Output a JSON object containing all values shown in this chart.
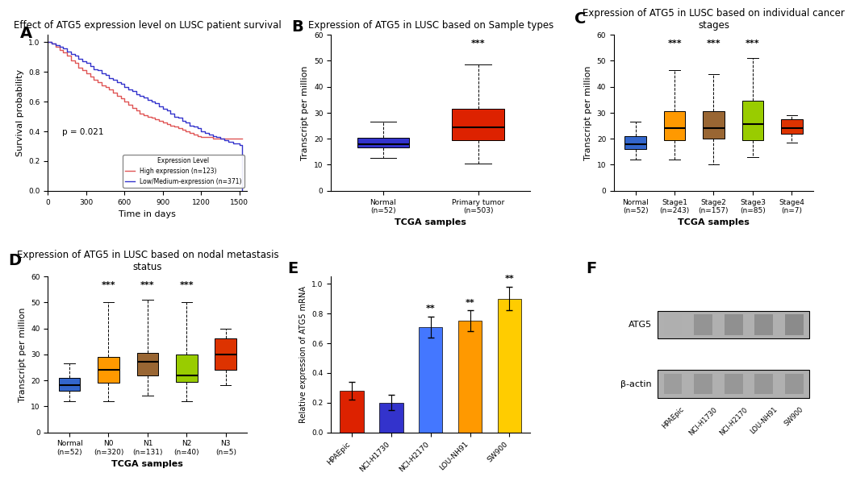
{
  "panel_A": {
    "title": "Effect of ATG5 expression level on LUSC patient survival",
    "xlabel": "Time in days",
    "ylabel": "Survival probability",
    "p_value": "p = 0.021",
    "legend_title": "Expression Level",
    "high_label": "High expression (n=123)",
    "low_label": "Low/Medium-expression (n=371)",
    "high_color": "#e05555",
    "low_color": "#3333cc",
    "high_x": [
      0,
      30,
      60,
      90,
      120,
      150,
      180,
      210,
      240,
      270,
      300,
      330,
      360,
      390,
      420,
      450,
      480,
      510,
      540,
      570,
      600,
      630,
      660,
      690,
      720,
      750,
      780,
      810,
      840,
      870,
      900,
      930,
      960,
      990,
      1020,
      1050,
      1080,
      1110,
      1140,
      1170,
      1200,
      1230,
      1260,
      1290,
      1320,
      1350,
      1380,
      1410,
      1450,
      1500,
      1520
    ],
    "high_y": [
      1.0,
      0.99,
      0.97,
      0.95,
      0.93,
      0.91,
      0.88,
      0.86,
      0.83,
      0.81,
      0.79,
      0.77,
      0.75,
      0.73,
      0.71,
      0.7,
      0.68,
      0.66,
      0.64,
      0.62,
      0.6,
      0.58,
      0.56,
      0.54,
      0.52,
      0.51,
      0.5,
      0.49,
      0.48,
      0.47,
      0.46,
      0.45,
      0.44,
      0.43,
      0.42,
      0.41,
      0.4,
      0.39,
      0.38,
      0.37,
      0.36,
      0.36,
      0.36,
      0.35,
      0.35,
      0.35,
      0.35,
      0.35,
      0.35,
      0.35,
      0.35
    ],
    "low_x": [
      0,
      30,
      60,
      90,
      120,
      150,
      180,
      210,
      240,
      270,
      300,
      330,
      360,
      390,
      420,
      450,
      480,
      510,
      540,
      570,
      600,
      630,
      660,
      690,
      720,
      750,
      780,
      810,
      840,
      870,
      900,
      930,
      960,
      990,
      1020,
      1050,
      1080,
      1110,
      1140,
      1170,
      1200,
      1230,
      1260,
      1290,
      1320,
      1350,
      1380,
      1410,
      1450,
      1500,
      1520
    ],
    "low_y": [
      1.0,
      0.99,
      0.98,
      0.97,
      0.96,
      0.94,
      0.92,
      0.91,
      0.89,
      0.87,
      0.86,
      0.84,
      0.82,
      0.81,
      0.79,
      0.78,
      0.76,
      0.75,
      0.73,
      0.72,
      0.7,
      0.68,
      0.67,
      0.65,
      0.64,
      0.63,
      0.61,
      0.6,
      0.59,
      0.57,
      0.55,
      0.54,
      0.52,
      0.5,
      0.49,
      0.47,
      0.46,
      0.44,
      0.43,
      0.42,
      0.4,
      0.39,
      0.38,
      0.37,
      0.36,
      0.35,
      0.34,
      0.33,
      0.32,
      0.31,
      0.0
    ]
  },
  "panel_B": {
    "title": "Expression of ATG5 in LUSC based on Sample types",
    "xlabel": "TCGA samples",
    "ylabel": "Transcript per million",
    "categories": [
      "Normal\n(n=52)",
      "Primary tumor\n(n=503)"
    ],
    "colors": [
      "#3333cc",
      "#dd2200"
    ],
    "significance": [
      "",
      "***"
    ],
    "boxes": [
      {
        "med": 18.0,
        "q1": 16.5,
        "q3": 20.5,
        "whislo": 12.5,
        "whishi": 26.5
      },
      {
        "med": 24.5,
        "q1": 19.5,
        "q3": 31.5,
        "whislo": 10.5,
        "whishi": 48.5
      }
    ],
    "ylim": [
      0,
      60
    ],
    "yticks": [
      0,
      10,
      20,
      30,
      40,
      50,
      60
    ]
  },
  "panel_C": {
    "title": "Expression of ATG5 in LUSC based on individual cancer\nstages",
    "xlabel": "TCGA samples",
    "ylabel": "Transcript per million",
    "categories": [
      "Normal\n(n=52)",
      "Stage1\n(n=243)",
      "Stage2\n(n=157)",
      "Stage3\n(n=85)",
      "Stage4\n(n=7)"
    ],
    "colors": [
      "#3366cc",
      "#ff9900",
      "#996633",
      "#99cc00",
      "#dd3300"
    ],
    "significance": [
      "",
      "***",
      "***",
      "***",
      ""
    ],
    "boxes": [
      {
        "med": 18.0,
        "q1": 16.0,
        "q3": 21.0,
        "whislo": 12.0,
        "whishi": 26.5
      },
      {
        "med": 24.0,
        "q1": 19.5,
        "q3": 30.5,
        "whislo": 12.0,
        "whishi": 46.5
      },
      {
        "med": 24.0,
        "q1": 20.0,
        "q3": 30.5,
        "whislo": 10.0,
        "whishi": 45.0
      },
      {
        "med": 25.5,
        "q1": 19.5,
        "q3": 34.5,
        "whislo": 13.0,
        "whishi": 51.0
      },
      {
        "med": 24.0,
        "q1": 22.0,
        "q3": 27.5,
        "whislo": 18.5,
        "whishi": 29.0
      }
    ],
    "ylim": [
      0,
      60
    ],
    "yticks": [
      0,
      10,
      20,
      30,
      40,
      50,
      60
    ]
  },
  "panel_D": {
    "title": "Expression of ATG5 in LUSC based on nodal metastasis\nstatus",
    "xlabel": "TCGA samples",
    "ylabel": "Transcript per million",
    "categories": [
      "Normal\n(n=52)",
      "N0\n(n=320)",
      "N1\n(n=131)",
      "N2\n(n=40)",
      "N3\n(n=5)"
    ],
    "colors": [
      "#3366cc",
      "#ff9900",
      "#996633",
      "#99cc00",
      "#dd3300"
    ],
    "significance": [
      "",
      "***",
      "***",
      "***",
      ""
    ],
    "boxes": [
      {
        "med": 18.0,
        "q1": 16.0,
        "q3": 21.0,
        "whislo": 12.0,
        "whishi": 26.5
      },
      {
        "med": 24.0,
        "q1": 19.0,
        "q3": 29.0,
        "whislo": 12.0,
        "whishi": 50.0
      },
      {
        "med": 27.0,
        "q1": 22.0,
        "q3": 30.5,
        "whislo": 14.0,
        "whishi": 51.0
      },
      {
        "med": 22.0,
        "q1": 19.5,
        "q3": 30.0,
        "whislo": 12.0,
        "whishi": 50.0
      },
      {
        "med": 30.0,
        "q1": 24.0,
        "q3": 36.0,
        "whislo": 18.0,
        "whishi": 40.0
      }
    ],
    "ylim": [
      0,
      60
    ],
    "yticks": [
      0,
      10,
      20,
      30,
      40,
      50,
      60
    ]
  },
  "panel_E": {
    "ylabel": "Relative expression of ATG5 mRNA",
    "categories": [
      "HPAEpic",
      "NCI-H1730",
      "NCI-H2170",
      "LOU-NH91",
      "SW900"
    ],
    "colors": [
      "#dd2200",
      "#3333cc",
      "#4477ff",
      "#ff9900",
      "#ffcc00"
    ],
    "values": [
      0.28,
      0.2,
      0.71,
      0.75,
      0.9
    ],
    "errors": [
      0.06,
      0.05,
      0.07,
      0.07,
      0.08
    ],
    "significance": [
      "",
      "",
      "**",
      "**",
      "**"
    ],
    "ylim": [
      0,
      1.05
    ],
    "yticks": [
      0.0,
      0.2,
      0.4,
      0.6,
      0.8,
      1.0
    ]
  },
  "panel_F": {
    "atg5_label": "ATG5",
    "actin_label": "β-actin",
    "cell_lines": [
      "HPAEpic",
      "NCI-H1730",
      "NCI-H2170",
      "LOU-NH91",
      "SW900"
    ],
    "atg5_intensities": [
      0.45,
      0.6,
      0.62,
      0.63,
      0.65
    ],
    "actin_intensities": [
      0.55,
      0.58,
      0.58,
      0.58,
      0.58
    ],
    "blot_bg": "#cccccc",
    "band_color_dark": "#444444",
    "band_color_light": "#888888"
  },
  "bg_color": "#ffffff",
  "panel_label_fontsize": 14,
  "title_fontsize": 8.5,
  "axis_fontsize": 8
}
